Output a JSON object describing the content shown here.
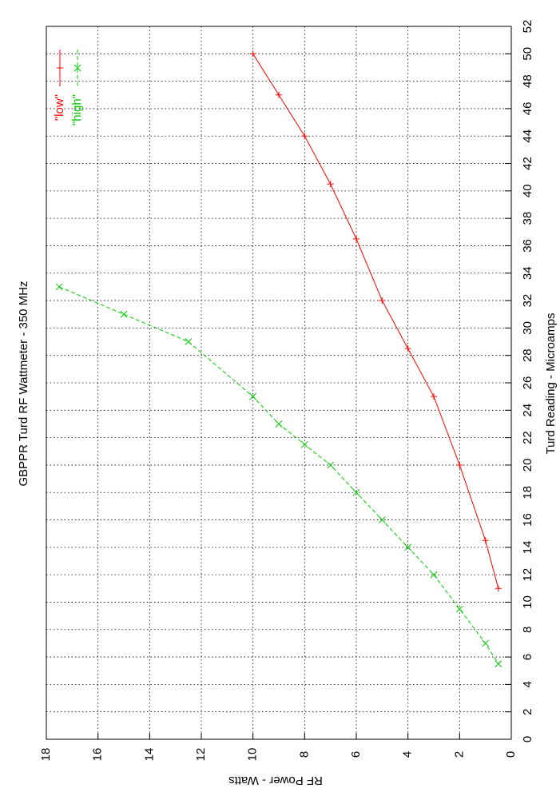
{
  "chart_data": {
    "type": "line",
    "title": "GBPPR Turd RF Wattmeter  -  350 MHz",
    "x_label": "RF Power  -  Watts",
    "y_label": "Turd Reading  -  Microamps",
    "xlim": [
      0,
      18
    ],
    "xticks": [
      0,
      2,
      4,
      6,
      8,
      10,
      12,
      14,
      16,
      18
    ],
    "ylim": [
      0,
      52
    ],
    "yticks": [
      0,
      2,
      4,
      6,
      8,
      10,
      12,
      14,
      16,
      18,
      20,
      22,
      24,
      26,
      28,
      30,
      32,
      34,
      36,
      38,
      40,
      42,
      44,
      46,
      48,
      50,
      52
    ],
    "grid": true,
    "legend": "top-left",
    "series": [
      {
        "name": "\"low\"",
        "color": "#ff0000",
        "marker": "plus",
        "x": [
          10,
          9,
          8,
          7,
          6,
          5,
          4,
          3,
          2,
          1,
          0.5
        ],
        "values": [
          50,
          47,
          44,
          40.5,
          36.5,
          32,
          28.5,
          25,
          20,
          14.5,
          11
        ]
      },
      {
        "name": "\"high\"",
        "color": "#00cc00",
        "marker": "cross",
        "dashed": true,
        "x": [
          17.5,
          15,
          12.5,
          10,
          9,
          8,
          7,
          6,
          5,
          4,
          3,
          2,
          1,
          0.5
        ],
        "values": [
          33,
          31,
          29,
          25,
          23,
          21.5,
          20,
          18,
          16,
          14,
          12,
          9.5,
          7,
          5.5
        ]
      }
    ]
  }
}
